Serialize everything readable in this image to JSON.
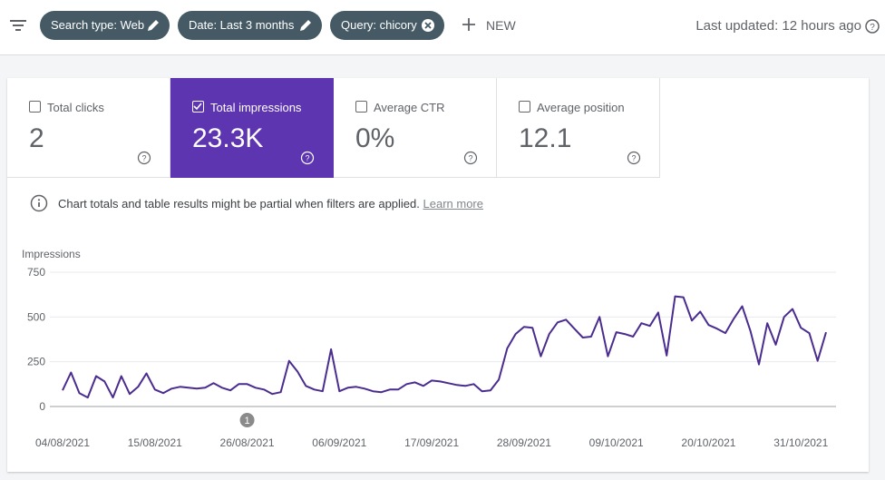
{
  "toolbar": {
    "filters": [
      "Search type: Web",
      "Date: Last 3 months",
      "Query: chicory"
    ],
    "new_button": "NEW",
    "last_updated": "Last updated: 12 hours ago"
  },
  "metrics": [
    {
      "label": "Total clicks",
      "value": "2",
      "selected": false
    },
    {
      "label": "Total impressions",
      "value": "23.3K",
      "selected": true
    },
    {
      "label": "Average CTR",
      "value": "0%",
      "selected": false
    },
    {
      "label": "Average position",
      "value": "12.1",
      "selected": false
    }
  ],
  "notice": {
    "text": "Chart totals and table results might be partial when filters are applied.",
    "link": "Learn more"
  },
  "chart_data": {
    "type": "line",
    "y_label": "Impressions",
    "x": [
      "04/08/2021",
      "05/08/2021",
      "06/08/2021",
      "07/08/2021",
      "08/08/2021",
      "09/08/2021",
      "10/08/2021",
      "11/08/2021",
      "12/08/2021",
      "13/08/2021",
      "14/08/2021",
      "15/08/2021",
      "16/08/2021",
      "17/08/2021",
      "18/08/2021",
      "19/08/2021",
      "20/08/2021",
      "21/08/2021",
      "22/08/2021",
      "23/08/2021",
      "24/08/2021",
      "25/08/2021",
      "26/08/2021",
      "27/08/2021",
      "28/08/2021",
      "29/08/2021",
      "30/08/2021",
      "31/08/2021",
      "01/09/2021",
      "02/09/2021",
      "03/09/2021",
      "04/09/2021",
      "05/09/2021",
      "06/09/2021",
      "07/09/2021",
      "08/09/2021",
      "09/09/2021",
      "10/09/2021",
      "11/09/2021",
      "12/09/2021",
      "13/09/2021",
      "14/09/2021",
      "15/09/2021",
      "16/09/2021",
      "17/09/2021",
      "18/09/2021",
      "19/09/2021",
      "20/09/2021",
      "21/09/2021",
      "22/09/2021",
      "23/09/2021",
      "24/09/2021",
      "25/09/2021",
      "26/09/2021",
      "27/09/2021",
      "28/09/2021",
      "29/09/2021",
      "30/09/2021",
      "01/10/2021",
      "02/10/2021",
      "03/10/2021",
      "04/10/2021",
      "05/10/2021",
      "06/10/2021",
      "07/10/2021",
      "08/10/2021",
      "09/10/2021",
      "10/10/2021",
      "11/10/2021",
      "12/10/2021",
      "13/10/2021",
      "14/10/2021",
      "15/10/2021",
      "16/10/2021",
      "17/10/2021",
      "18/10/2021",
      "19/10/2021",
      "20/10/2021",
      "21/10/2021",
      "22/10/2021",
      "23/10/2021",
      "24/10/2021",
      "25/10/2021",
      "26/10/2021",
      "27/10/2021",
      "28/10/2021",
      "29/10/2021",
      "30/10/2021",
      "31/10/2021",
      "01/11/2021",
      "02/11/2021",
      "03/11/2021"
    ],
    "series": [
      {
        "name": "Impressions",
        "color": "#4a2c8f",
        "values": [
          90,
          190,
          75,
          50,
          170,
          140,
          50,
          170,
          70,
          110,
          185,
          95,
          75,
          100,
          110,
          105,
          100,
          105,
          130,
          105,
          90,
          125,
          125,
          105,
          95,
          70,
          80,
          255,
          195,
          115,
          95,
          85,
          320,
          85,
          105,
          110,
          100,
          85,
          80,
          95,
          95,
          125,
          135,
          115,
          145,
          140,
          130,
          120,
          115,
          125,
          85,
          90,
          150,
          325,
          405,
          445,
          440,
          280,
          405,
          470,
          485,
          435,
          385,
          390,
          500,
          280,
          415,
          405,
          390,
          465,
          450,
          525,
          285,
          615,
          610,
          480,
          530,
          455,
          435,
          410,
          490,
          560,
          420,
          235,
          465,
          345,
          500,
          545,
          440,
          410,
          255,
          415
        ]
      }
    ],
    "ylim": [
      0,
      750
    ],
    "yticks": [
      0,
      250,
      500,
      750
    ],
    "grid": true,
    "xticks": [
      "04/08/2021",
      "15/08/2021",
      "26/08/2021",
      "06/09/2021",
      "17/09/2021",
      "28/09/2021",
      "09/10/2021",
      "20/10/2021",
      "31/10/2021"
    ],
    "annotations": [
      {
        "x": "26/08/2021",
        "label": "1"
      }
    ]
  }
}
